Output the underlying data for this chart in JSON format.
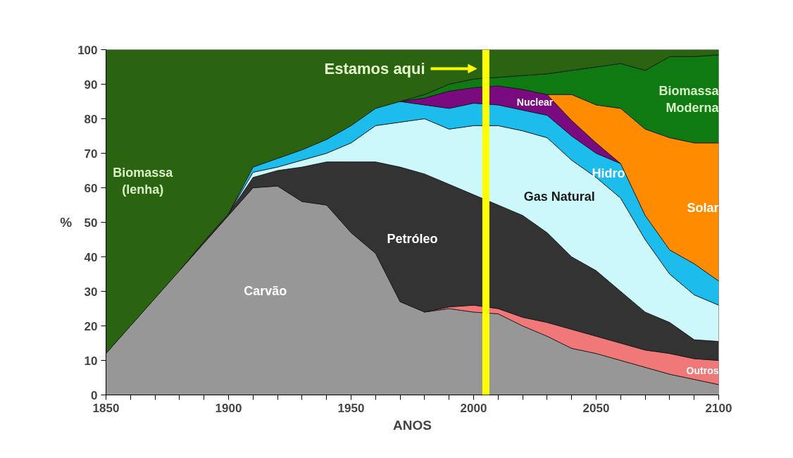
{
  "chart_data": {
    "type": "area",
    "stacked": true,
    "xlabel": "ANOS",
    "ylabel": "%",
    "x": [
      1850,
      1860,
      1870,
      1880,
      1890,
      1900,
      1910,
      1920,
      1930,
      1940,
      1950,
      1960,
      1970,
      1980,
      1990,
      2000,
      2010,
      2020,
      2030,
      2040,
      2050,
      2060,
      2070,
      2080,
      2090,
      2100
    ],
    "series": [
      {
        "name": "Carvão",
        "color": "#979797",
        "values": [
          12,
          20,
          28,
          36,
          44,
          52,
          60,
          60.5,
          56,
          55,
          47,
          41,
          27,
          24,
          25,
          24,
          23.5,
          20,
          17,
          13.5,
          12,
          10,
          8,
          6,
          4.5,
          3
        ]
      },
      {
        "name": "Outros",
        "color": "#f07878",
        "values": [
          null,
          null,
          null,
          null,
          null,
          null,
          null,
          null,
          null,
          null,
          null,
          null,
          null,
          0,
          0.5,
          2,
          1.5,
          2.5,
          4,
          5.5,
          5,
          5,
          5,
          6,
          6,
          7
        ]
      },
      {
        "name": "Petróleo",
        "color": "#333333",
        "values": [
          null,
          null,
          null,
          0,
          0.5,
          0.5,
          3,
          4.5,
          10,
          12.5,
          20.5,
          26.5,
          39,
          40,
          35.5,
          32,
          30,
          29.5,
          26,
          21,
          19,
          15,
          11,
          9,
          5.5,
          5.5
        ]
      },
      {
        "name": "Gas Natural",
        "color": "#ccf7fb",
        "values": [
          null,
          null,
          null,
          null,
          null,
          0,
          1.5,
          1,
          2,
          2.5,
          5.5,
          10.5,
          13,
          16,
          16,
          20,
          23,
          24.5,
          27.5,
          28,
          27,
          27,
          21,
          14,
          13,
          10.5
        ]
      },
      {
        "name": "Hidro",
        "color": "#1cbcec",
        "values": [
          null,
          null,
          null,
          null,
          null,
          0,
          1.5,
          2.5,
          3,
          4,
          5,
          5,
          6,
          4,
          6,
          6.5,
          6,
          6,
          6.5,
          7,
          7,
          10,
          7,
          7,
          9,
          7
        ]
      },
      {
        "name": "Nuclear",
        "color": "#7a0a80",
        "values": [
          null,
          null,
          null,
          null,
          null,
          null,
          null,
          null,
          null,
          null,
          null,
          null,
          0,
          2,
          5,
          4.5,
          5.5,
          6,
          6,
          4.5,
          3,
          0,
          null,
          null,
          null,
          null
        ]
      },
      {
        "name": "Solar",
        "color": "#ff8c00",
        "values": [
          null,
          null,
          null,
          null,
          null,
          null,
          null,
          null,
          null,
          null,
          null,
          null,
          null,
          null,
          null,
          null,
          null,
          null,
          0,
          7.5,
          11,
          16,
          25,
          32.5,
          35,
          40
        ]
      },
      {
        "name": "Biomassa\nModerna",
        "color": "#0f7a12",
        "values": [
          null,
          null,
          null,
          null,
          null,
          null,
          null,
          null,
          null,
          null,
          null,
          null,
          0,
          1,
          2,
          2.5,
          2.5,
          4,
          6,
          7,
          11,
          13,
          17,
          23.5,
          25,
          25.5
        ]
      },
      {
        "name": "Biomassa\n(lenha)",
        "color": "#2a6410",
        "values": [
          88,
          80,
          72,
          64,
          55.5,
          47.5,
          34,
          31.5,
          29,
          26,
          22,
          17,
          15,
          13,
          10,
          8.5,
          8,
          7.5,
          7,
          6,
          5,
          4,
          6,
          2,
          2,
          1.5
        ]
      }
    ],
    "xlim": [
      1850,
      2100
    ],
    "ylim": [
      0,
      100
    ],
    "xticks": [
      1850,
      {
        "value": 1860,
        "label": null
      },
      {
        "value": 1870,
        "label": null
      },
      {
        "value": 1880,
        "label": null
      },
      {
        "value": 1890,
        "label": null
      },
      1900,
      {
        "value": 1910,
        "label": null
      },
      {
        "value": 1920,
        "label": null
      },
      {
        "value": 1930,
        "label": null
      },
      {
        "value": 1940,
        "label": null
      },
      1950,
      {
        "value": 1960,
        "label": null
      },
      {
        "value": 1970,
        "label": null
      },
      {
        "value": 1980,
        "label": null
      },
      {
        "value": 1990,
        "label": null
      },
      2000,
      {
        "value": 2010,
        "label": null
      },
      {
        "value": 2020,
        "label": null
      },
      {
        "value": 2030,
        "label": null
      },
      {
        "value": 2040,
        "label": null
      },
      2050,
      {
        "value": 2060,
        "label": null
      },
      {
        "value": 2070,
        "label": null
      },
      {
        "value": 2080,
        "label": null
      },
      {
        "value": 2090,
        "label": null
      },
      2100
    ],
    "yticks": [
      0,
      10,
      20,
      30,
      40,
      50,
      60,
      70,
      80,
      90,
      100
    ],
    "ref_lines": [
      {
        "axis": "x",
        "value": 2005,
        "label": "Estamos aqui",
        "color": "#ffff00"
      }
    ]
  }
}
